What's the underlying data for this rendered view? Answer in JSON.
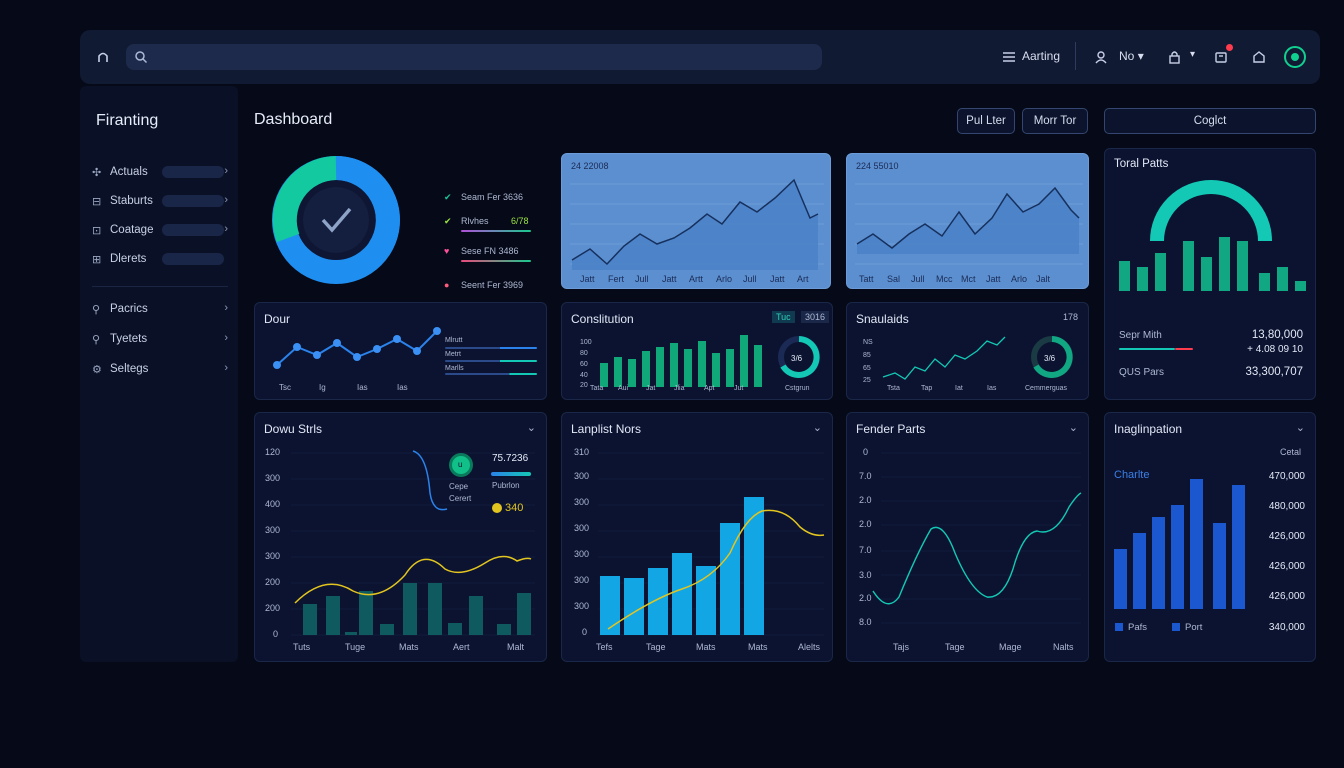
{
  "topbar": {
    "search_placeholder": "",
    "user_label": "Aarting",
    "account_label": "No",
    "colors": {
      "accent": "#10d08f",
      "alert": "#ff3b4e"
    }
  },
  "sidebar": {
    "brand": "Firanting",
    "items": [
      {
        "label": "Actuals",
        "icon": "chart-icon"
      },
      {
        "label": "Staburts",
        "icon": "stack-icon"
      },
      {
        "label": "Coatage",
        "icon": "box-icon"
      },
      {
        "label": "Dlerets",
        "icon": "doc-icon"
      },
      {
        "label": "Pacrics",
        "icon": "search-icon"
      },
      {
        "label": "Tyetets",
        "icon": "search-icon"
      },
      {
        "label": "Seltegs",
        "icon": "settings-icon"
      }
    ]
  },
  "header": {
    "title": "Dashboard",
    "buttons": [
      "Pul Lter",
      "Morr Tor",
      "Coglct"
    ]
  },
  "donut_card": {
    "legend": [
      {
        "label": "Seam Fer 3636",
        "color": "#18c39a"
      },
      {
        "label": "Rlvhes",
        "value": "6/78",
        "color": "#9be43f"
      },
      {
        "label": "Sese FN 3486",
        "color": "#ff4f9a"
      },
      {
        "label": "Seent Fer 3969",
        "color": "#ff5c7c"
      }
    ],
    "segments": [
      0.28,
      0.72
    ]
  },
  "area_card_1": {
    "title": "24 22008",
    "x_labels": [
      "Jatt",
      "Fert",
      "Jull",
      "Jatt",
      "Artt",
      "Arlo",
      "Jull",
      "Jatt",
      "Art"
    ]
  },
  "area_card_2": {
    "title": "224 55010",
    "x_labels": [
      "Tatt",
      "Sal",
      "Jull",
      "Mcc",
      "Mct",
      "Jatt",
      "Arlo",
      "Jalt"
    ]
  },
  "total_parts": {
    "title": "Toral Patts",
    "rows": [
      {
        "label": "Sepr Mith",
        "value": "13,80,000"
      },
      {
        "label": "",
        "value": "+ 4.08 09 10"
      },
      {
        "label": "QUS Pars",
        "value": "33,300,707"
      }
    ]
  },
  "dour_card": {
    "title": "Dour",
    "x_labels": [
      "Tsc",
      "Ig",
      "Ias",
      "Ias"
    ],
    "legend": [
      "Mlrutt",
      "Metrt",
      "Marlls"
    ]
  },
  "constitution_card": {
    "title": "Conslitution",
    "tabs": [
      "Tuc",
      "3016"
    ],
    "y_labels": [
      "100",
      "80",
      "60",
      "40",
      "20",
      "0"
    ],
    "x_labels": [
      "Tata",
      "Aui",
      "Jat",
      "Jlia",
      "Apt",
      "Jut"
    ],
    "gauge_value": "3/6",
    "gauge_label": "Cstgrun"
  },
  "snaudais_card": {
    "title": "Snaulaids",
    "badge": "178",
    "y_labels": [
      "NS",
      "85",
      "65",
      "25"
    ],
    "x_labels": [
      "Tsta",
      "Tap",
      "Iat",
      "Ias"
    ],
    "gauge_value": "3/6",
    "gauge_label": "Cemmerguas"
  },
  "dowu_series": {
    "title": "Dowu Strls",
    "y_labels": [
      "120",
      "300",
      "400",
      "300",
      "300",
      "200",
      "200",
      "0"
    ],
    "x_labels": [
      "Tuts",
      "Tuge",
      "Mats",
      "Aert",
      "Malt"
    ],
    "inset": {
      "label": "Cepe",
      "sub": "Cerert",
      "value": "75.7236",
      "value2": "Pubrlon",
      "badge": "340"
    }
  },
  "laplet_card": {
    "title": "Lanplist Nors",
    "y_labels": [
      "310",
      "300",
      "300",
      "300",
      "300",
      "300",
      "300",
      "0"
    ],
    "x_labels": [
      "Tefs",
      "Tage",
      "Mats",
      "Mats",
      "Alelts"
    ]
  },
  "fender_card": {
    "title": "Fender Parts",
    "y_labels": [
      "0",
      "7.0",
      "2.0",
      "2.0",
      "7.0",
      "3.0",
      "2.0",
      "8.0"
    ],
    "x_labels": [
      "Tajs",
      "Tage",
      "Mage",
      "Nalts"
    ]
  },
  "inalian_card": {
    "title": "Inaglinpation",
    "subtitle": "Cetal",
    "chart_title": "Charlte",
    "values": [
      "470,000",
      "480,000",
      "426,000",
      "426,000",
      "426,000",
      "340,000"
    ],
    "legend": [
      "Pafs",
      "Port"
    ]
  }
}
